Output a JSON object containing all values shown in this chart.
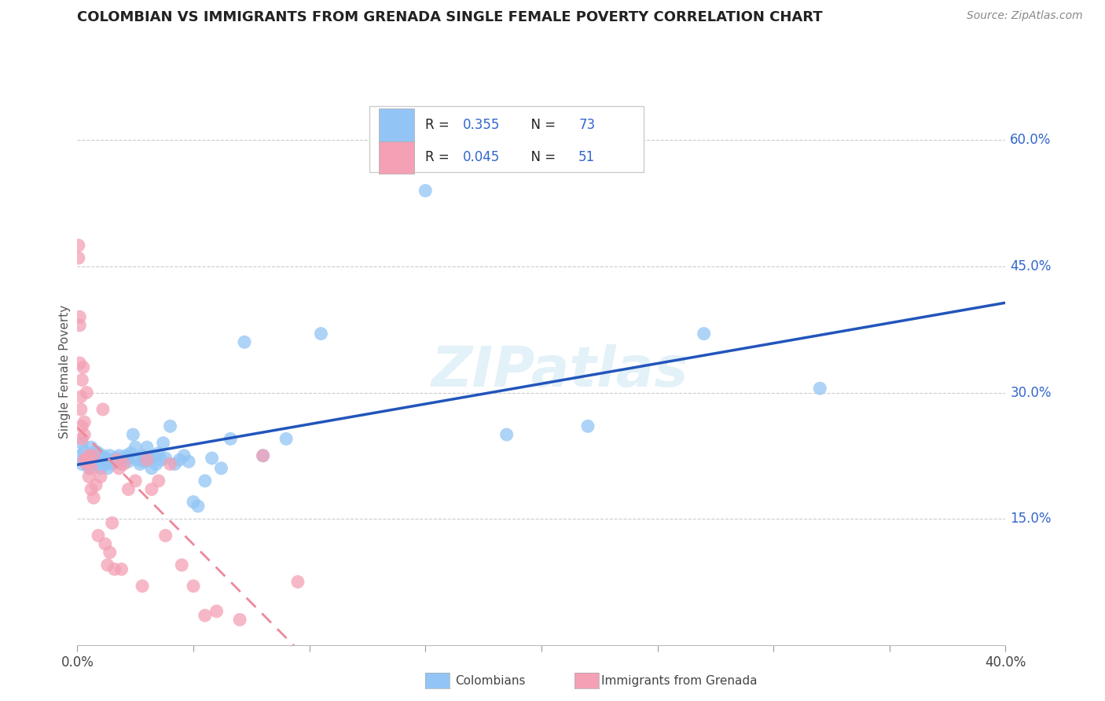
{
  "title": "COLOMBIAN VS IMMIGRANTS FROM GRENADA SINGLE FEMALE POVERTY CORRELATION CHART",
  "source": "Source: ZipAtlas.com",
  "xlabel_colombians": "Colombians",
  "xlabel_grenada": "Immigrants from Grenada",
  "ylabel": "Single Female Poverty",
  "xlim": [
    0.0,
    0.4
  ],
  "ylim": [
    0.0,
    0.65
  ],
  "R_colombian": 0.355,
  "N_colombian": 73,
  "R_grenada": 0.045,
  "N_grenada": 51,
  "color_colombian": "#92C5F5",
  "color_grenada": "#F4A0B5",
  "color_line_colombian": "#2255BB",
  "color_line_grenada": "#EE8899",
  "watermark": "ZIPatlas",
  "colombian_x": [
    0.001,
    0.002,
    0.002,
    0.003,
    0.003,
    0.004,
    0.004,
    0.005,
    0.005,
    0.006,
    0.006,
    0.006,
    0.007,
    0.007,
    0.008,
    0.008,
    0.009,
    0.009,
    0.01,
    0.01,
    0.011,
    0.011,
    0.012,
    0.012,
    0.013,
    0.013,
    0.014,
    0.015,
    0.015,
    0.016,
    0.017,
    0.018,
    0.019,
    0.02,
    0.021,
    0.022,
    0.022,
    0.023,
    0.024,
    0.025,
    0.026,
    0.027,
    0.028,
    0.029,
    0.03,
    0.031,
    0.032,
    0.033,
    0.034,
    0.035,
    0.036,
    0.037,
    0.038,
    0.04,
    0.042,
    0.044,
    0.046,
    0.048,
    0.05,
    0.052,
    0.055,
    0.058,
    0.062,
    0.066,
    0.072,
    0.08,
    0.09,
    0.105,
    0.15,
    0.185,
    0.22,
    0.27,
    0.32
  ],
  "colombian_y": [
    0.225,
    0.24,
    0.215,
    0.22,
    0.23,
    0.22,
    0.215,
    0.225,
    0.21,
    0.235,
    0.22,
    0.215,
    0.225,
    0.218,
    0.23,
    0.222,
    0.228,
    0.215,
    0.22,
    0.21,
    0.218,
    0.225,
    0.215,
    0.222,
    0.22,
    0.21,
    0.225,
    0.215,
    0.22,
    0.218,
    0.222,
    0.225,
    0.215,
    0.22,
    0.225,
    0.218,
    0.222,
    0.228,
    0.25,
    0.235,
    0.22,
    0.215,
    0.225,
    0.218,
    0.235,
    0.222,
    0.21,
    0.225,
    0.215,
    0.228,
    0.22,
    0.24,
    0.222,
    0.26,
    0.215,
    0.22,
    0.225,
    0.218,
    0.17,
    0.165,
    0.195,
    0.222,
    0.21,
    0.245,
    0.36,
    0.225,
    0.245,
    0.37,
    0.54,
    0.25,
    0.26,
    0.37,
    0.305
  ],
  "grenada_x": [
    0.0005,
    0.0005,
    0.001,
    0.001,
    0.001,
    0.0015,
    0.0015,
    0.002,
    0.002,
    0.002,
    0.0025,
    0.003,
    0.003,
    0.003,
    0.004,
    0.004,
    0.004,
    0.005,
    0.005,
    0.006,
    0.006,
    0.007,
    0.007,
    0.008,
    0.009,
    0.01,
    0.011,
    0.012,
    0.013,
    0.014,
    0.015,
    0.016,
    0.017,
    0.018,
    0.019,
    0.02,
    0.022,
    0.025,
    0.028,
    0.03,
    0.032,
    0.035,
    0.038,
    0.04,
    0.045,
    0.05,
    0.055,
    0.06,
    0.07,
    0.08,
    0.095
  ],
  "grenada_y": [
    0.46,
    0.475,
    0.38,
    0.39,
    0.335,
    0.28,
    0.295,
    0.26,
    0.315,
    0.245,
    0.33,
    0.25,
    0.265,
    0.22,
    0.22,
    0.215,
    0.3,
    0.2,
    0.225,
    0.21,
    0.185,
    0.175,
    0.225,
    0.19,
    0.13,
    0.2,
    0.28,
    0.12,
    0.095,
    0.11,
    0.145,
    0.09,
    0.22,
    0.21,
    0.09,
    0.215,
    0.185,
    0.195,
    0.07,
    0.22,
    0.185,
    0.195,
    0.13,
    0.215,
    0.095,
    0.07,
    0.035,
    0.04,
    0.03,
    0.225,
    0.075
  ]
}
